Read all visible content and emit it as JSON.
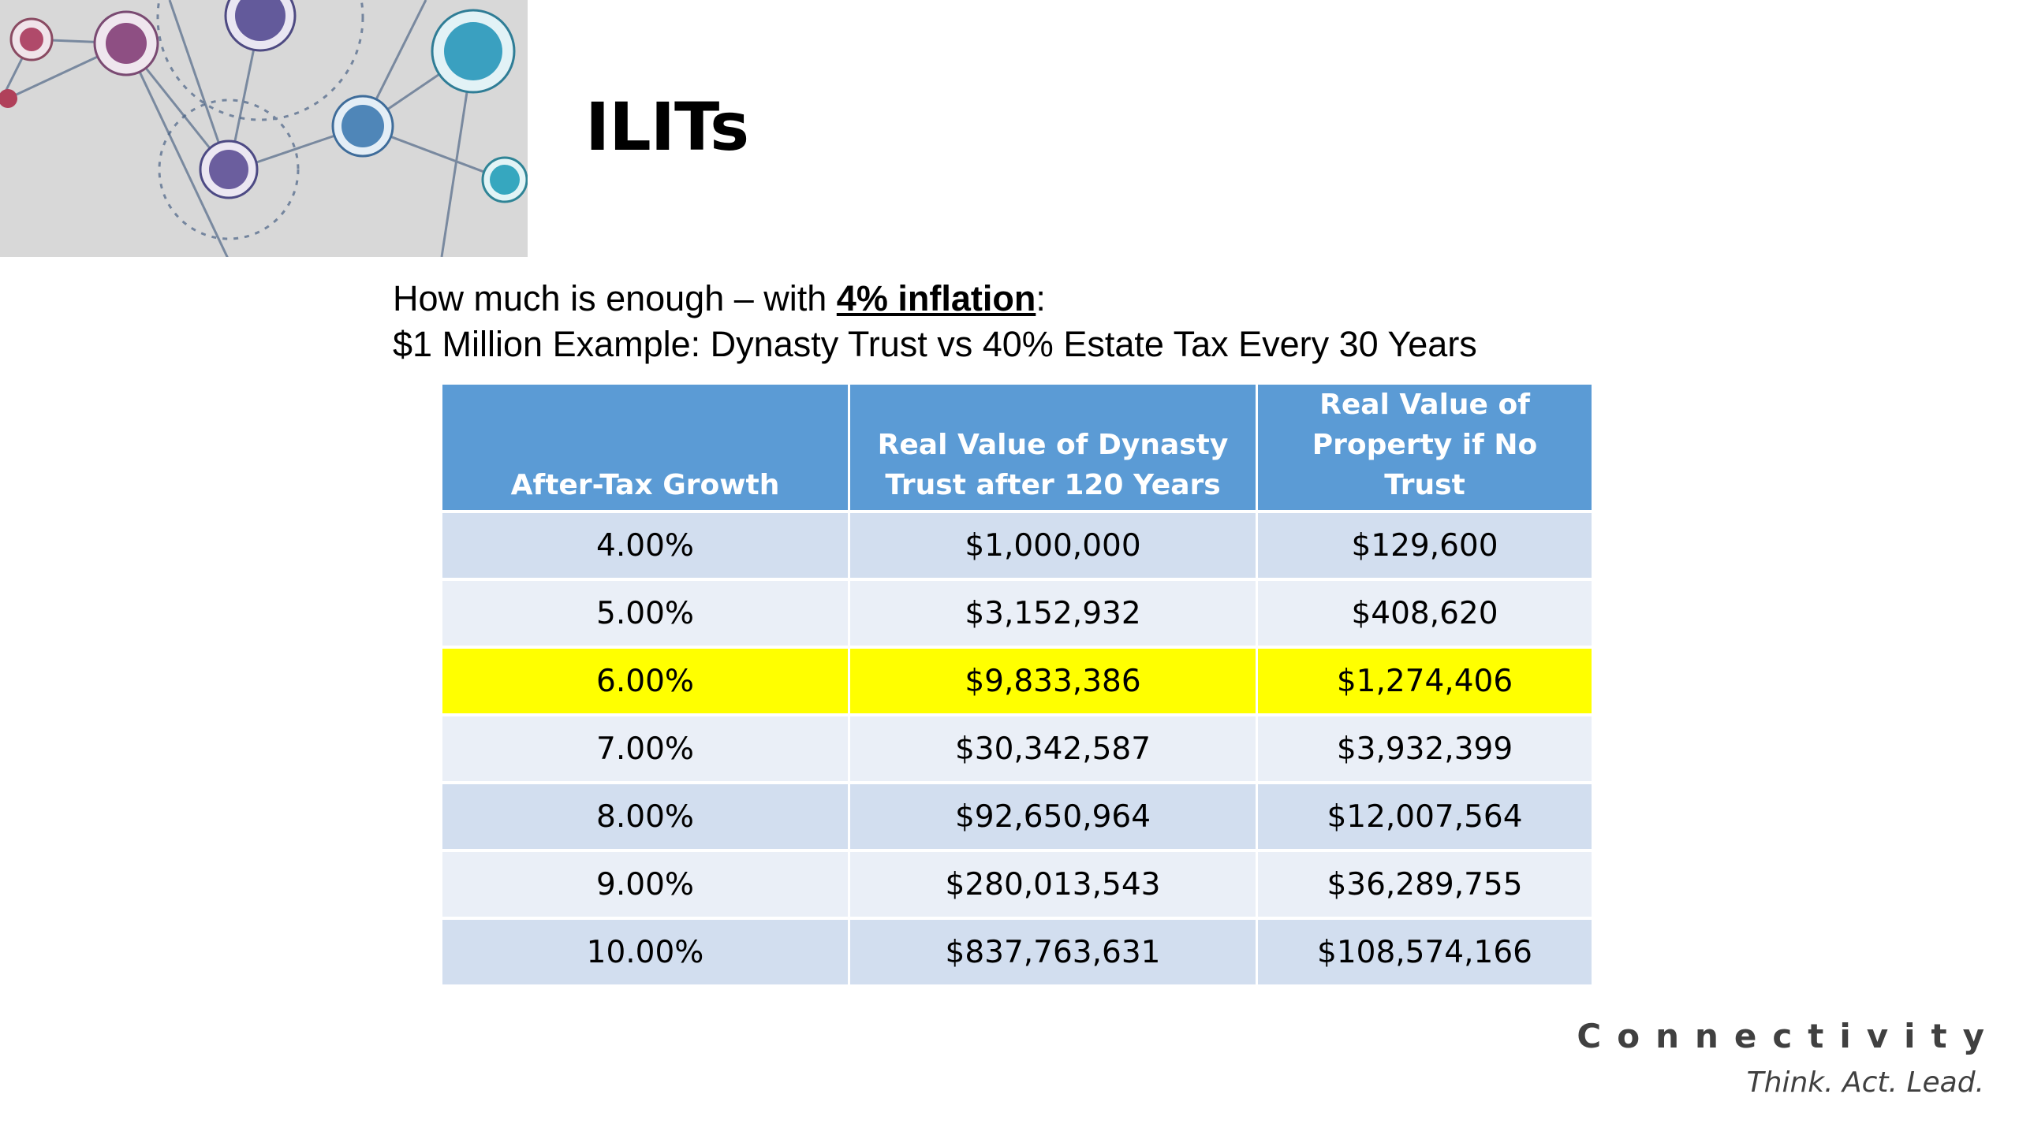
{
  "slide": {
    "title": "ILITs",
    "subtitle_line1_prefix": "How much is enough – with ",
    "subtitle_line1_emphasis": "4% inflation",
    "subtitle_line1_suffix": ":",
    "subtitle_line2": "$1 Million Example: Dynasty Trust vs 40% Estate Tax Every 30 Years"
  },
  "table": {
    "headers": [
      "After-Tax Growth",
      "Real Value of Dynasty Trust after 120 Years",
      "Real Value of Property if No Trust"
    ],
    "highlight_color": "#ffff00",
    "rows": [
      {
        "growth": "4.00%",
        "dynasty": "$1,000,000",
        "no_trust": "$129,600"
      },
      {
        "growth": "5.00%",
        "dynasty": "$3,152,932",
        "no_trust": "$408,620"
      },
      {
        "growth": "6.00%",
        "dynasty": "$9,833,386",
        "no_trust": "$1,274,406"
      },
      {
        "growth": "7.00%",
        "dynasty": "$30,342,587",
        "no_trust": "$3,932,399"
      },
      {
        "growth": "8.00%",
        "dynasty": "$92,650,964",
        "no_trust": "$12,007,564"
      },
      {
        "growth": "9.00%",
        "dynasty": "$280,013,543",
        "no_trust": "$36,289,755"
      },
      {
        "growth": "10.00%",
        "dynasty": "$837,763,631",
        "no_trust": "$108,574,166"
      }
    ]
  },
  "branding": {
    "name": "Connectivity",
    "tagline": "Think. Act. Lead."
  }
}
